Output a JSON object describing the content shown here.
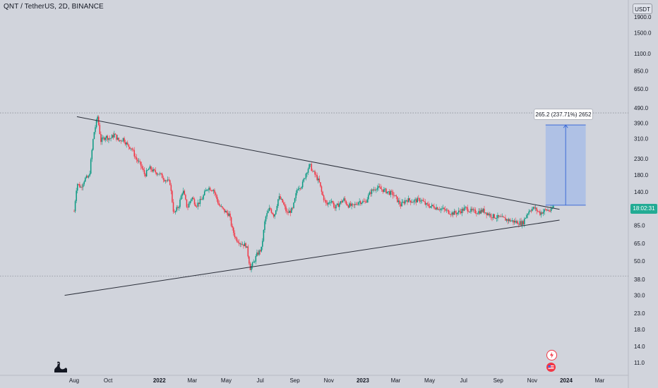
{
  "header": {
    "title": "QNT / TetherUS, 2D, BINANCE"
  },
  "currency_button": {
    "label": "USDT"
  },
  "last_price_timer": "18:02:31",
  "measure": {
    "label": "265.2 (237.71%) 2652",
    "from": 115,
    "to": 380
  },
  "icons": {
    "logo": "tradingview-logo-icon",
    "flash": "flash-icon",
    "flag": "us-flag-icon"
  },
  "colors": {
    "up": "#089981",
    "down": "#f23645",
    "measure_fill": "#a9bde6",
    "measure_line": "#3d6bd6",
    "trendline": "#2a2e39",
    "background": "#d1d4dc",
    "last_price": "#22ab94"
  },
  "chart_data": {
    "type": "candlestick",
    "scale": "log",
    "y_ticks": [
      1900.0,
      1500.0,
      1100.0,
      850.0,
      650.0,
      490.0,
      390.0,
      310.0,
      230.0,
      180.0,
      140.0,
      85.0,
      65.0,
      50.0,
      38.0,
      30.0,
      23.0,
      18.0,
      14.0,
      11.0
    ],
    "y_tick_labels": [
      "1900.0",
      "1500.0",
      "1100.0",
      "850.0",
      "650.0",
      "490.0",
      "390.0",
      "310.0",
      "230.0",
      "180.0",
      "140.0",
      "85.0",
      "65.0",
      "50.0",
      "38.0",
      "30.0",
      "23.0",
      "18.0",
      "14.0",
      "11.0"
    ],
    "x_tick_labels": [
      "Aug",
      "Oct",
      "2022",
      "Mar",
      "May",
      "Jul",
      "Sep",
      "Nov",
      "2023",
      "Mar",
      "May",
      "Jul",
      "Sep",
      "Nov",
      "2024",
      "Mar"
    ],
    "x_tick_dates": [
      "2021-08-01",
      "2021-10-01",
      "2022-01-01",
      "2022-03-01",
      "2022-05-01",
      "2022-07-01",
      "2022-09-01",
      "2022-11-01",
      "2023-01-01",
      "2023-03-01",
      "2023-05-01",
      "2023-07-01",
      "2023-09-01",
      "2023-11-01",
      "2024-01-01",
      "2024-03-01"
    ],
    "bold_x_labels": [
      "2022",
      "2023",
      "2024"
    ],
    "price_path": [
      [
        "2021-08-01",
        105
      ],
      [
        "2021-08-06",
        160
      ],
      [
        "2021-08-13",
        150
      ],
      [
        "2021-08-20",
        170
      ],
      [
        "2021-08-28",
        175
      ],
      [
        "2021-09-05",
        330
      ],
      [
        "2021-09-12",
        430
      ],
      [
        "2021-09-18",
        300
      ],
      [
        "2021-09-26",
        320
      ],
      [
        "2021-10-05",
        310
      ],
      [
        "2021-10-12",
        330
      ],
      [
        "2021-10-20",
        300
      ],
      [
        "2021-10-28",
        310
      ],
      [
        "2021-11-05",
        280
      ],
      [
        "2021-11-12",
        270
      ],
      [
        "2021-11-20",
        230
      ],
      [
        "2021-11-28",
        210
      ],
      [
        "2021-12-06",
        180
      ],
      [
        "2021-12-14",
        200
      ],
      [
        "2021-12-22",
        190
      ],
      [
        "2021-12-31",
        185
      ],
      [
        "2022-01-10",
        170
      ],
      [
        "2022-01-20",
        160
      ],
      [
        "2022-01-27",
        100
      ],
      [
        "2022-02-05",
        115
      ],
      [
        "2022-02-12",
        145
      ],
      [
        "2022-02-20",
        110
      ],
      [
        "2022-02-28",
        130
      ],
      [
        "2022-03-08",
        115
      ],
      [
        "2022-03-18",
        125
      ],
      [
        "2022-03-28",
        150
      ],
      [
        "2022-04-08",
        145
      ],
      [
        "2022-04-18",
        115
      ],
      [
        "2022-04-28",
        105
      ],
      [
        "2022-05-06",
        100
      ],
      [
        "2022-05-12",
        80
      ],
      [
        "2022-05-18",
        70
      ],
      [
        "2022-05-28",
        65
      ],
      [
        "2022-06-06",
        63
      ],
      [
        "2022-06-13",
        45
      ],
      [
        "2022-06-18",
        48
      ],
      [
        "2022-06-25",
        55
      ],
      [
        "2022-07-03",
        60
      ],
      [
        "2022-07-10",
        95
      ],
      [
        "2022-07-18",
        110
      ],
      [
        "2022-07-26",
        98
      ],
      [
        "2022-08-03",
        130
      ],
      [
        "2022-08-10",
        120
      ],
      [
        "2022-08-18",
        102
      ],
      [
        "2022-08-28",
        108
      ],
      [
        "2022-09-06",
        150
      ],
      [
        "2022-09-14",
        155
      ],
      [
        "2022-09-22",
        190
      ],
      [
        "2022-09-28",
        210
      ],
      [
        "2022-10-03",
        190
      ],
      [
        "2022-10-10",
        175
      ],
      [
        "2022-10-15",
        160
      ],
      [
        "2022-10-20",
        135
      ],
      [
        "2022-10-28",
        115
      ],
      [
        "2022-11-05",
        125
      ],
      [
        "2022-11-12",
        110
      ],
      [
        "2022-11-20",
        118
      ],
      [
        "2022-11-28",
        125
      ],
      [
        "2022-12-05",
        115
      ],
      [
        "2022-12-15",
        113
      ],
      [
        "2022-12-25",
        122
      ],
      [
        "2023-01-05",
        120
      ],
      [
        "2023-01-15",
        140
      ],
      [
        "2023-01-25",
        150
      ],
      [
        "2023-02-05",
        145
      ],
      [
        "2023-02-15",
        140
      ],
      [
        "2023-02-25",
        135
      ],
      [
        "2023-03-10",
        115
      ],
      [
        "2023-03-20",
        125
      ],
      [
        "2023-04-01",
        122
      ],
      [
        "2023-04-15",
        125
      ],
      [
        "2023-04-25",
        115
      ],
      [
        "2023-05-10",
        112
      ],
      [
        "2023-05-25",
        108
      ],
      [
        "2023-06-10",
        102
      ],
      [
        "2023-06-20",
        103
      ],
      [
        "2023-07-05",
        110
      ],
      [
        "2023-07-15",
        105
      ],
      [
        "2023-07-25",
        104
      ],
      [
        "2023-08-05",
        106
      ],
      [
        "2023-08-20",
        98
      ],
      [
        "2023-09-05",
        95
      ],
      [
        "2023-09-20",
        92
      ],
      [
        "2023-10-05",
        89
      ],
      [
        "2023-10-15",
        88
      ],
      [
        "2023-10-22",
        100
      ],
      [
        "2023-10-28",
        108
      ],
      [
        "2023-11-05",
        110
      ],
      [
        "2023-11-15",
        102
      ],
      [
        "2023-11-25",
        107
      ],
      [
        "2023-12-05",
        106
      ],
      [
        "2023-12-10",
        115
      ]
    ],
    "trendlines": [
      {
        "name": "resistance",
        "from": [
          "2021-08-06",
          430
        ],
        "to": [
          "2023-12-20",
          108
        ]
      },
      {
        "name": "support",
        "from": [
          "2021-07-15",
          30
        ],
        "to": [
          "2023-12-20",
          92
        ]
      }
    ],
    "horizontal_levels": [
      {
        "value": 455
      },
      {
        "value": 40
      }
    ]
  }
}
